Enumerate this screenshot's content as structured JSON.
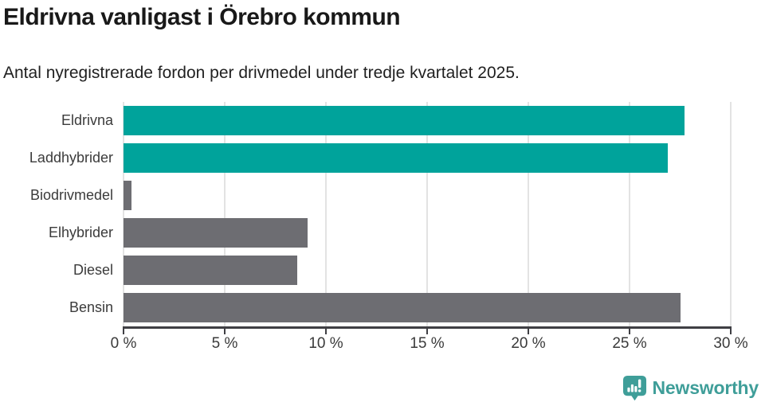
{
  "chart_data": {
    "type": "bar",
    "orientation": "horizontal",
    "title": "Eldrivna vanligast i Örebro kommun",
    "subtitle": "Antal nyregistrerade fordon per drivmedel under tredje kvartalet 2025.",
    "categories": [
      "Eldrivna",
      "Laddhybrider",
      "Biodrivmedel",
      "Elhybrider",
      "Diesel",
      "Bensin"
    ],
    "values": [
      27.7,
      26.9,
      0.4,
      9.1,
      8.6,
      27.5
    ],
    "unit": "%",
    "xlim": [
      0,
      30
    ],
    "x_ticks": [
      0,
      5,
      10,
      15,
      20,
      25,
      30
    ],
    "x_tick_labels": [
      "0 %",
      "5 %",
      "10 %",
      "15 %",
      "20 %",
      "25 %",
      "30 %"
    ],
    "bar_colors": [
      "#00a39b",
      "#00a39b",
      "#6d6d72",
      "#6d6d72",
      "#6d6d72",
      "#6d6d72"
    ],
    "highlight_color": "#00a39b",
    "default_color": "#6d6d72",
    "grid": "vertical-light-gray",
    "legend": "none"
  },
  "branding": {
    "logo_text": "Newsworthy",
    "logo_color": "#3f9e99",
    "logo_icon": "bar-chart-speech-bubble-icon"
  }
}
